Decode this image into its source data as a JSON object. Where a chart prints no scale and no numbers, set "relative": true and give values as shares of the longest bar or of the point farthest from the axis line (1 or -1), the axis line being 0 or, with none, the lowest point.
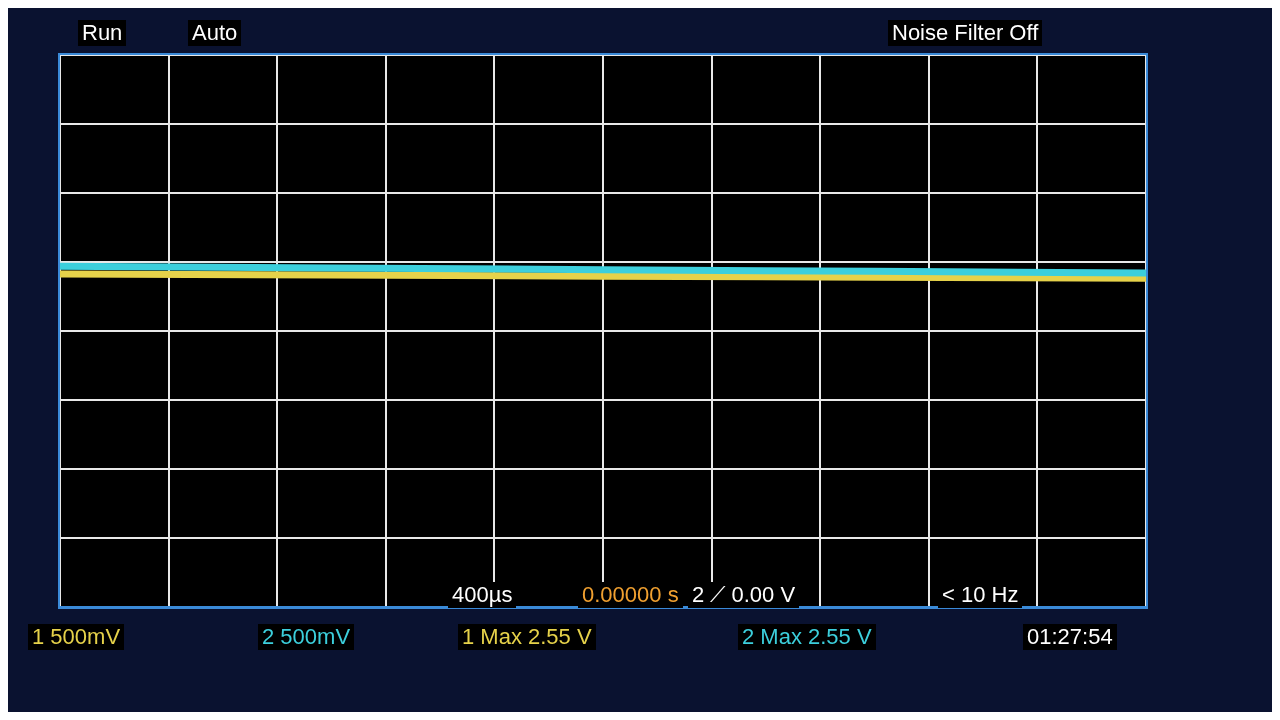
{
  "chart_data": {
    "type": "line",
    "relative": true,
    "categories": [
      null,
      null,
      null,
      null,
      null
    ],
    "series": [
      {
        "color": "#3ccfdc",
        "values": [
          1.0,
          0.995,
          0.99,
          0.985,
          0.98
        ]
      },
      {
        "color": "#e6d24a",
        "values": [
          0.977,
          0.974,
          0.971,
          0.968,
          0.965
        ]
      }
    ],
    "grid": true,
    "legend": false,
    "marker": "none",
    "line_style": "solid",
    "annotations": [
      "Run",
      "Auto",
      "Noise Filter Off",
      "400µs",
      "0.00000 s",
      "2 ⟋ 0.00 V",
      "< 10 Hz",
      "1 500mV",
      "2 500mV",
      "1 Max 2.55 V",
      "2 Max 2.55 V",
      "01:27:54"
    ]
  }
}
